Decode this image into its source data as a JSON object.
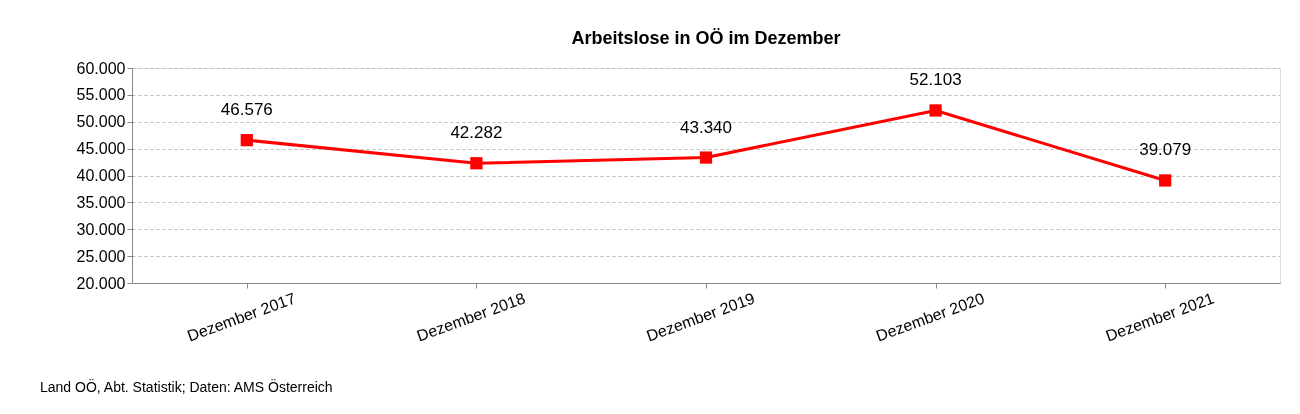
{
  "chart_data": {
    "type": "line",
    "title": "Arbeitslose in OÖ im Dezember",
    "categories": [
      "Dezember 2017",
      "Dezember 2018",
      "Dezember 2019",
      "Dezember 2020",
      "Dezember 2021"
    ],
    "series": [
      {
        "color": "#ff0000",
        "values": [
          46576,
          42282,
          43340,
          52103,
          39079
        ],
        "value_labels": [
          "46.576",
          "42.282",
          "43.340",
          "52.103",
          "39.079"
        ]
      }
    ],
    "ylim": [
      20000,
      60000
    ],
    "yticks": [
      {
        "value": 20000,
        "label": "20.000"
      },
      {
        "value": 25000,
        "label": "25.000"
      },
      {
        "value": 30000,
        "label": "30.000"
      },
      {
        "value": 35000,
        "label": "35.000"
      },
      {
        "value": 40000,
        "label": "40.000"
      },
      {
        "value": 45000,
        "label": "45.000"
      },
      {
        "value": 50000,
        "label": "50.000"
      },
      {
        "value": 55000,
        "label": "55.000"
      },
      {
        "value": 60000,
        "label": "60.000"
      }
    ],
    "grid": "y",
    "marker": "square",
    "line_style": "solid",
    "annotations": [
      "Land OÖ, Abt. Statistik; Daten: AMS Österreich"
    ]
  }
}
